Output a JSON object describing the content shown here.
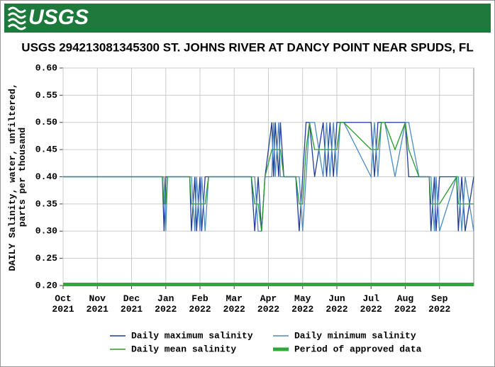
{
  "header": {
    "logo": "USGS"
  },
  "chart_data": {
    "type": "line",
    "title": "USGS 294213081345300 ST. JOHNS RIVER AT DANCY POINT NEAR SPUDS, FL",
    "y_label": "DAILY Salinity, water, unfiltered, parts per thousand",
    "x": [
      0,
      2.9,
      2.95,
      3.0,
      3.05,
      3.1,
      3.7,
      3.75,
      3.85,
      3.9,
      4.0,
      4.05,
      4.15,
      4.25,
      4.3,
      5.5,
      5.6,
      5.7,
      5.8,
      5.9,
      6.1,
      6.15,
      6.2,
      6.3,
      6.35,
      6.45,
      6.8,
      6.9,
      7.0,
      7.1,
      7.2,
      7.35,
      7.6,
      7.7,
      7.8,
      7.9,
      8.0,
      8.1,
      8.2,
      9.0,
      9.1,
      9.2,
      9.3,
      9.4,
      9.7,
      10.0,
      10.1,
      10.4,
      10.55,
      10.7,
      10.75,
      10.85,
      10.9,
      11.0,
      11.5,
      11.55,
      11.65,
      11.75,
      12
    ],
    "series": [
      {
        "name": "Daily maximum salinity",
        "color": "#1f3c99",
        "values": [
          0.4,
          0.4,
          0.3,
          0.4,
          0.4,
          0.4,
          0.4,
          0.3,
          0.4,
          0.3,
          0.4,
          0.3,
          0.4,
          0.4,
          0.4,
          0.4,
          0.3,
          0.4,
          0.3,
          0.4,
          0.5,
          0.4,
          0.5,
          0.4,
          0.5,
          0.4,
          0.4,
          0.3,
          0.4,
          0.5,
          0.5,
          0.4,
          0.5,
          0.4,
          0.5,
          0.4,
          0.5,
          0.5,
          0.5,
          0.5,
          0.4,
          0.5,
          0.5,
          0.5,
          0.5,
          0.5,
          0.4,
          0.4,
          0.4,
          0.4,
          0.3,
          0.4,
          0.3,
          0.4,
          0.4,
          0.3,
          0.4,
          0.3,
          0.4
        ]
      },
      {
        "name": "Daily minimum salinity",
        "color": "#4a8bc4",
        "values": [
          0.4,
          0.4,
          0.4,
          0.3,
          0.4,
          0.4,
          0.4,
          0.4,
          0.3,
          0.4,
          0.3,
          0.4,
          0.3,
          0.4,
          0.4,
          0.4,
          0.4,
          0.3,
          0.3,
          0.4,
          0.4,
          0.5,
          0.4,
          0.5,
          0.4,
          0.4,
          0.4,
          0.4,
          0.3,
          0.4,
          0.5,
          0.5,
          0.4,
          0.5,
          0.4,
          0.5,
          0.4,
          0.5,
          0.5,
          0.4,
          0.5,
          0.4,
          0.5,
          0.5,
          0.4,
          0.5,
          0.5,
          0.4,
          0.4,
          0.4,
          0.4,
          0.3,
          0.4,
          0.3,
          0.4,
          0.4,
          0.3,
          0.4,
          0.3
        ]
      },
      {
        "name": "Daily mean salinity",
        "color": "#2a9a2a",
        "values": [
          0.4,
          0.4,
          0.35,
          0.35,
          0.4,
          0.4,
          0.4,
          0.35,
          0.35,
          0.35,
          0.35,
          0.35,
          0.35,
          0.4,
          0.4,
          0.4,
          0.35,
          0.35,
          0.3,
          0.4,
          0.45,
          0.45,
          0.45,
          0.45,
          0.45,
          0.4,
          0.4,
          0.35,
          0.35,
          0.45,
          0.5,
          0.45,
          0.45,
          0.45,
          0.45,
          0.45,
          0.45,
          0.5,
          0.5,
          0.45,
          0.45,
          0.45,
          0.5,
          0.5,
          0.45,
          0.5,
          0.45,
          0.4,
          0.4,
          0.4,
          0.35,
          0.35,
          0.35,
          0.35,
          0.4,
          0.35,
          0.35,
          0.35,
          0.35
        ]
      }
    ],
    "approved_period": {
      "name": "Period of approved data",
      "color": "#2daa3a",
      "x": [
        0,
        12
      ]
    },
    "xlim": [
      0,
      12
    ],
    "xticks": [
      {
        "value": 0,
        "label": "Oct 2021"
      },
      {
        "value": 1,
        "label": "Nov 2021"
      },
      {
        "value": 2,
        "label": "Dec 2021"
      },
      {
        "value": 3,
        "label": "Jan 2022"
      },
      {
        "value": 4,
        "label": "Feb 2022"
      },
      {
        "value": 5,
        "label": "Mar 2022"
      },
      {
        "value": 6,
        "label": "Apr 2022"
      },
      {
        "value": 7,
        "label": "May 2022"
      },
      {
        "value": 8,
        "label": "Jun 2022"
      },
      {
        "value": 9,
        "label": "Jul 2022"
      },
      {
        "value": 10,
        "label": "Aug 2022"
      },
      {
        "value": 11,
        "label": "Sep 2022"
      }
    ],
    "ylim": [
      0.2,
      0.6
    ],
    "yticks": [
      {
        "value": 0.2,
        "label": "0.20"
      },
      {
        "value": 0.25,
        "label": "0.25"
      },
      {
        "value": 0.3,
        "label": "0.30"
      },
      {
        "value": 0.35,
        "label": "0.35"
      },
      {
        "value": 0.4,
        "label": "0.40"
      },
      {
        "value": 0.45,
        "label": "0.45"
      },
      {
        "value": 0.5,
        "label": "0.50"
      },
      {
        "value": 0.55,
        "label": "0.55"
      },
      {
        "value": 0.6,
        "label": "0.60"
      }
    ],
    "grid": true
  }
}
